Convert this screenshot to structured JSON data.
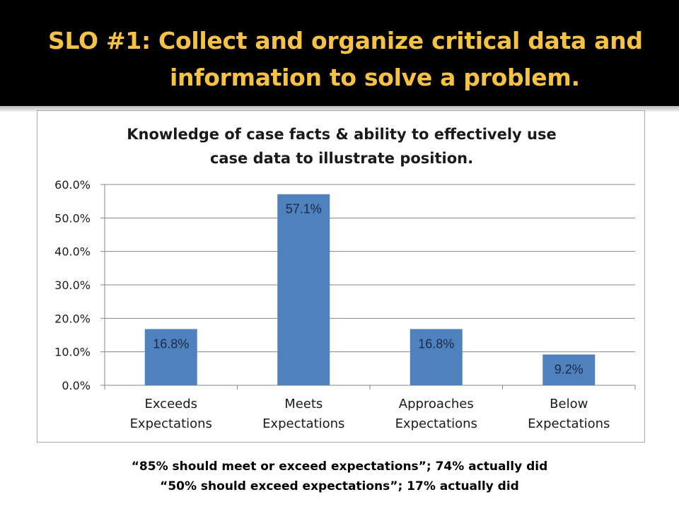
{
  "slide": {
    "title_line1": "SLO #1: Collect and organize critical data and",
    "title_line2": "information to solve a problem.",
    "footnote_line1": "“85% should meet or exceed expectations”; 74% actually did",
    "footnote_line2": "“50% should exceed expectations”; 17% actually did"
  },
  "colors": {
    "title_text": "#f5c243",
    "bar_fill": "#4f81bd",
    "gridline": "#868686"
  },
  "chart_data": {
    "type": "bar",
    "title_lines": [
      "Knowledge of case facts & ability to effectively use",
      "case data to illustrate position."
    ],
    "categories": [
      [
        "Exceeds",
        "Expectations"
      ],
      [
        "Meets",
        "Expectations"
      ],
      [
        "Approaches",
        "Expectations"
      ],
      [
        "Below",
        "Expectations"
      ]
    ],
    "values": [
      16.8,
      57.1,
      16.8,
      9.2
    ],
    "data_labels": [
      "16.8%",
      "57.1%",
      "16.8%",
      "9.2%"
    ],
    "ylim": [
      0,
      60
    ],
    "y_ticks": [
      0,
      10,
      20,
      30,
      40,
      50,
      60
    ],
    "y_tick_labels": [
      "0.0%",
      "10.0%",
      "20.0%",
      "30.0%",
      "40.0%",
      "50.0%",
      "60.0%"
    ],
    "grid": true,
    "legend": "none"
  }
}
